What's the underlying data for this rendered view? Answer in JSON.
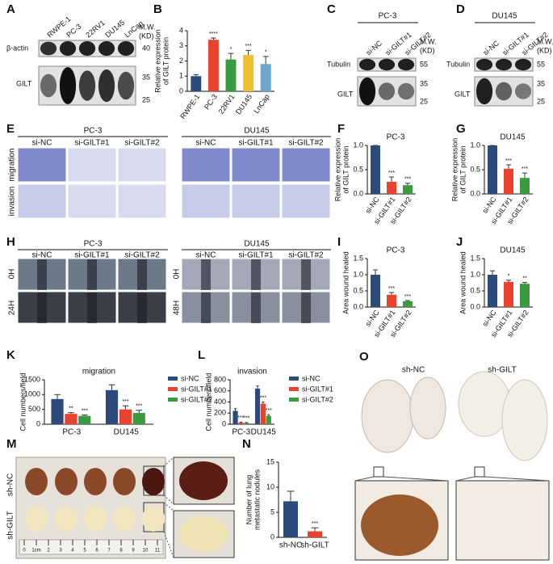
{
  "panel_letters": [
    "A",
    "B",
    "C",
    "D",
    "E",
    "F",
    "G",
    "H",
    "I",
    "J",
    "K",
    "L",
    "M",
    "N",
    "O"
  ],
  "blots": {
    "A": {
      "lanes": [
        "RWPE-1",
        "PC-3",
        "22RV1",
        "DU145",
        "LnCap"
      ],
      "rows": [
        "β-actin",
        "GILT"
      ],
      "mw": [
        "M.W.",
        "(KD)"
      ],
      "markers": [
        40,
        35,
        25
      ]
    },
    "C": {
      "title": "PC-3",
      "lanes": [
        "si-NC",
        "si-GILT#1",
        "si-GILT#2"
      ],
      "rows": [
        "Tubulin",
        "GILT"
      ],
      "mw": [
        "M.W.",
        "(KD)"
      ],
      "markers": [
        55,
        35,
        25
      ]
    },
    "D": {
      "title": "DU145",
      "lanes": [
        "si-NC",
        "si-GILT#1",
        "si-GILT#2"
      ],
      "rows": [
        "Tubulin",
        "GILT"
      ],
      "mw": [
        "M.W.",
        "(KD)"
      ],
      "markers": [
        55,
        35,
        25
      ]
    }
  },
  "transwell": {
    "groups": [
      "PC-3",
      "DU145"
    ],
    "columns": [
      "si-NC",
      "si-GILT#1",
      "si-GILT#2"
    ],
    "rows": [
      "migration",
      "invasion"
    ]
  },
  "wound": {
    "groups": [
      "PC-3",
      "DU145"
    ],
    "columns": [
      "si-NC",
      "si-GILT#1",
      "si-GILT#2"
    ],
    "rows_pc3": [
      "0H",
      "24H"
    ],
    "rows_du145": [
      "0H",
      "48H"
    ]
  },
  "lungs": {
    "rows": [
      "sh-NC",
      "sh-GILT"
    ],
    "ruler": [
      "0",
      "1cm",
      "2",
      "3",
      "4",
      "5",
      "6",
      "7",
      "8",
      "9",
      "10",
      "11"
    ]
  },
  "ihc": {
    "columns": [
      "sh-NC",
      "sh-GILT"
    ]
  },
  "chart_data": [
    {
      "type": "bar",
      "ylabel": [
        "Relative expression",
        "of GILT protein"
      ],
      "categories": [
        "RWPE-1",
        "PC-3",
        "22RV1",
        "DU145",
        "LnCap"
      ],
      "values": [
        1.0,
        3.4,
        2.1,
        2.4,
        1.8
      ],
      "errors": [
        0.1,
        0.12,
        0.4,
        0.3,
        0.5
      ],
      "annotations": [
        null,
        "****",
        "*",
        "***",
        "*"
      ],
      "colors": [
        "#2c4a7c",
        "#e8432f",
        "#3a9a40",
        "#f0c030",
        "#6ba6cf"
      ],
      "ylim": [
        0,
        4
      ],
      "yticks": [
        0,
        1,
        2,
        3,
        4
      ]
    },
    {
      "type": "bar",
      "title": "PC-3",
      "ylabel": [
        "Relative expression",
        "of GILT protein"
      ],
      "categories": [
        "si-NC",
        "si-GILT#1",
        "si-GILT#2"
      ],
      "values": [
        1.0,
        0.25,
        0.18
      ],
      "errors": [
        0.0,
        0.1,
        0.04
      ],
      "annotations": [
        null,
        "***",
        "***"
      ],
      "colors": [
        "#2c4a7c",
        "#e8432f",
        "#3a9a40"
      ],
      "ylim": [
        0,
        1.0
      ],
      "yticks": [
        {
          "value": 0,
          "label": "0.0"
        },
        {
          "value": 0.5,
          "label": "0.5"
        },
        {
          "value": 1,
          "label": "1.0"
        }
      ]
    },
    {
      "type": "bar",
      "title": "DU145",
      "ylabel": [
        "Relative expression",
        "of GILT protein"
      ],
      "categories": [
        "si-NC",
        "si-GILT#1",
        "si-GILT#2"
      ],
      "values": [
        1.0,
        0.52,
        0.33
      ],
      "errors": [
        0.0,
        0.08,
        0.1
      ],
      "annotations": [
        null,
        "***",
        "***"
      ],
      "colors": [
        "#2c4a7c",
        "#e8432f",
        "#3a9a40"
      ],
      "ylim": [
        0,
        1.0
      ],
      "yticks": [
        {
          "value": 0,
          "label": "0.0"
        },
        {
          "value": 0.5,
          "label": "0.5"
        },
        {
          "value": 1,
          "label": "1.0"
        }
      ]
    },
    {
      "type": "bar",
      "title": "PC-3",
      "ylabel": [
        "Area wound healed"
      ],
      "categories": [
        "si-NC",
        "si-GILT#1",
        "si-GILT#2"
      ],
      "values": [
        1.0,
        0.38,
        0.18
      ],
      "errors": [
        0.15,
        0.07,
        0.02
      ],
      "annotations": [
        null,
        "***",
        "***"
      ],
      "colors": [
        "#2c4a7c",
        "#e8432f",
        "#3a9a40"
      ],
      "ylim": [
        0,
        1.5
      ],
      "yticks": [
        {
          "value": 0,
          "label": "0.0"
        },
        {
          "value": 0.5,
          "label": "0.5"
        },
        {
          "value": 1,
          "label": "1.0"
        },
        {
          "value": 1.5,
          "label": "1.5"
        }
      ]
    },
    {
      "type": "bar",
      "title": "DU145",
      "ylabel": [
        "Area wound healed"
      ],
      "categories": [
        "si-NC",
        "si-GILT#1",
        "si-GILT#2"
      ],
      "values": [
        1.0,
        0.78,
        0.72
      ],
      "errors": [
        0.12,
        0.05,
        0.04
      ],
      "annotations": [
        null,
        "*",
        "**"
      ],
      "colors": [
        "#2c4a7c",
        "#e8432f",
        "#3a9a40"
      ],
      "ylim": [
        0,
        1.5
      ],
      "yticks": [
        {
          "value": 0,
          "label": "0.0"
        },
        {
          "value": 0.5,
          "label": "0.5"
        },
        {
          "value": 1,
          "label": "1.0"
        },
        {
          "value": 1.5,
          "label": "1.5"
        }
      ]
    },
    {
      "type": "bar",
      "title": "migration",
      "ylabel": [
        "Cell numbers/field"
      ],
      "categories": [
        "PC-3",
        "DU145"
      ],
      "series": [
        {
          "name": "si-NC",
          "color": "#2c4a7c",
          "values": [
            850,
            1150
          ],
          "errors": [
            150,
            180
          ],
          "annotations": [
            null,
            null
          ]
        },
        {
          "name": "si-GILT#1",
          "color": "#e8432f",
          "values": [
            350,
            500
          ],
          "errors": [
            40,
            120
          ],
          "annotations": [
            "**",
            "***"
          ]
        },
        {
          "name": "si-GILT#2",
          "color": "#3a9a40",
          "values": [
            280,
            380
          ],
          "errors": [
            30,
            90
          ],
          "annotations": [
            "***",
            "***"
          ]
        }
      ],
      "ylim": [
        0,
        1500
      ],
      "yticks": [
        0,
        500,
        1000,
        1500
      ]
    },
    {
      "type": "bar",
      "title": "invasion",
      "ylabel": [
        "Cell numbers/field"
      ],
      "categories": [
        "PC-3",
        "DU145"
      ],
      "series": [
        {
          "name": "si-NC",
          "color": "#2c4a7c",
          "values": [
            240,
            640
          ],
          "errors": [
            40,
            50
          ],
          "annotations": [
            null,
            null
          ]
        },
        {
          "name": "si-GILT#1",
          "color": "#e8432f",
          "values": [
            30,
            370
          ],
          "errors": [
            8,
            30
          ],
          "annotations": [
            "***",
            "***"
          ]
        },
        {
          "name": "si-GILT#2",
          "color": "#3a9a40",
          "values": [
            25,
            150
          ],
          "errors": [
            6,
            20
          ],
          "annotations": [
            "***",
            "***"
          ]
        }
      ],
      "ylim": [
        0,
        800
      ],
      "yticks": [
        0,
        200,
        400,
        600,
        800
      ]
    },
    {
      "type": "bar",
      "ylabel": [
        "Number of lung",
        "metastatic nodules"
      ],
      "categories": [
        "sh-NC",
        "sh-GILT"
      ],
      "values": [
        7.2,
        1.2
      ],
      "errors": [
        2.0,
        0.7
      ],
      "annotations": [
        null,
        "***"
      ],
      "colors": [
        "#2c4a7c",
        "#e8432f"
      ],
      "ylim": [
        0,
        15
      ],
      "yticks": [
        0,
        5,
        10,
        15
      ]
    }
  ]
}
